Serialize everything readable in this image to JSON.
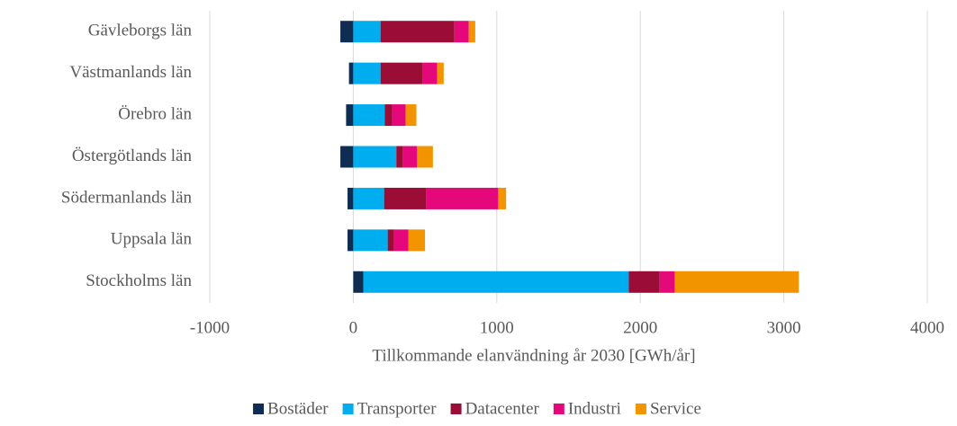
{
  "chart_data": {
    "type": "stacked-bar-horizontal",
    "x_label": "Tillkommande elanvändning år 2030 [GWh/år]",
    "categories": [
      "Gävleborgs län",
      "Västmanlands län",
      "Örebro län",
      "Östergötlands län",
      "Södermanlands län",
      "Uppsala län",
      "Stockholms län"
    ],
    "series": [
      {
        "name": "Bostäder",
        "color": "#0f2d52",
        "values": [
          -90,
          -30,
          -50,
          -90,
          -40,
          -40,
          70
        ]
      },
      {
        "name": "Transporter",
        "color": "#00adee",
        "values": [
          190,
          190,
          220,
          300,
          215,
          240,
          1850
        ]
      },
      {
        "name": "Datacenter",
        "color": "#9b0d37",
        "values": [
          515,
          295,
          50,
          45,
          295,
          45,
          215
        ]
      },
      {
        "name": "Industri",
        "color": "#e5087a",
        "values": [
          100,
          100,
          95,
          100,
          500,
          100,
          105
        ]
      },
      {
        "name": "Service",
        "color": "#f29400",
        "values": [
          45,
          45,
          75,
          110,
          55,
          115,
          865
        ]
      }
    ],
    "xlim": [
      -1000,
      4000
    ],
    "xticks": [
      -1000,
      0,
      1000,
      2000,
      3000,
      4000
    ],
    "grid": true,
    "legend": "bottom"
  }
}
